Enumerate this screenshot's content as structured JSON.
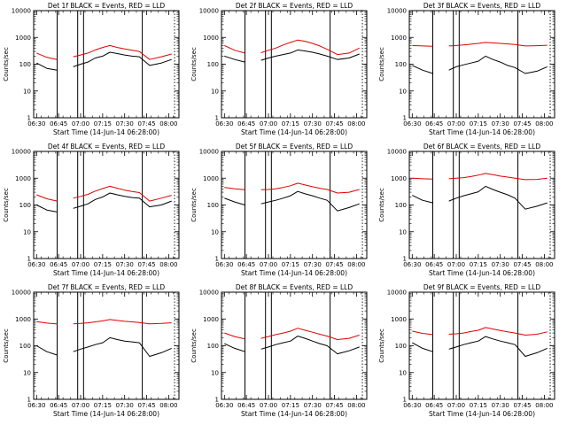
{
  "figure": {
    "xlabel": "Start Time (14-Jun-14 06:28:00)",
    "ylabel": "Counts/sec",
    "x_ticks": [
      "06:30",
      "06:45",
      "07:00",
      "07:15",
      "07:30",
      "07:45",
      "08:00"
    ],
    "y_ticks": [
      "1",
      "10",
      "100",
      "1000",
      "10000"
    ],
    "colors": {
      "events": "#000000",
      "lld": "#e00000",
      "axes": "#000000"
    }
  },
  "chart_data": [
    {
      "type": "line",
      "title": "Det 1f BLACK = Events, RED = LLD",
      "x_time_range": [
        "06:28",
        "08:07"
      ],
      "y_log": true,
      "ylim": [
        1,
        10000
      ],
      "markers": [
        "06:44",
        "06:58",
        "07:02",
        "07:42",
        "08:04"
      ],
      "x": [
        "06:30",
        "06:37",
        "06:44",
        "06:47",
        "06:55",
        "07:00",
        "07:05",
        "07:10",
        "07:15",
        "07:20",
        "07:25",
        "07:30",
        "07:35",
        "07:40",
        "07:47",
        "07:55",
        "08:02"
      ],
      "series": [
        {
          "name": "Events",
          "color": "#000000",
          "values": [
            110,
            70,
            60,
            null,
            80,
            100,
            120,
            170,
            200,
            280,
            250,
            220,
            200,
            190,
            90,
            110,
            150
          ]
        },
        {
          "name": "LLD",
          "color": "#e00000",
          "values": [
            260,
            180,
            150,
            null,
            190,
            220,
            260,
            340,
            420,
            500,
            420,
            370,
            330,
            300,
            150,
            190,
            240
          ]
        }
      ]
    },
    {
      "type": "line",
      "title": "Det 2f BLACK = Events, RED = LLD",
      "x_time_range": [
        "06:28",
        "08:07"
      ],
      "y_log": true,
      "ylim": [
        1,
        10000
      ],
      "markers": [
        "06:44",
        "06:58",
        "07:02",
        "07:42",
        "08:04"
      ],
      "x": [
        "06:30",
        "06:37",
        "06:44",
        "06:47",
        "06:55",
        "07:00",
        "07:05",
        "07:10",
        "07:15",
        "07:20",
        "07:25",
        "07:30",
        "07:35",
        "07:40",
        "07:47",
        "07:55",
        "08:02"
      ],
      "series": [
        {
          "name": "Events",
          "color": "#000000",
          "values": [
            200,
            150,
            120,
            null,
            140,
            170,
            200,
            230,
            260,
            340,
            310,
            280,
            240,
            200,
            150,
            170,
            240
          ]
        },
        {
          "name": "LLD",
          "color": "#e00000",
          "values": [
            500,
            330,
            260,
            null,
            270,
            330,
            400,
            520,
            650,
            800,
            720,
            600,
            480,
            360,
            230,
            260,
            400
          ]
        }
      ]
    },
    {
      "type": "line",
      "title": "Det 3f BLACK = Events, RED = LLD",
      "x_time_range": [
        "06:28",
        "08:07"
      ],
      "y_log": true,
      "ylim": [
        1,
        10000
      ],
      "markers": [
        "06:44",
        "06:58",
        "07:02",
        "07:42",
        "08:04"
      ],
      "x": [
        "06:30",
        "06:37",
        "06:44",
        "06:47",
        "06:55",
        "07:00",
        "07:05",
        "07:10",
        "07:15",
        "07:20",
        "07:25",
        "07:30",
        "07:35",
        "07:40",
        "07:47",
        "07:55",
        "08:02"
      ],
      "series": [
        {
          "name": "Events",
          "color": "#000000",
          "values": [
            90,
            60,
            45,
            null,
            60,
            80,
            95,
            110,
            130,
            200,
            150,
            120,
            90,
            75,
            45,
            55,
            80
          ]
        },
        {
          "name": "LLD",
          "color": "#e00000",
          "values": [
            500,
            480,
            470,
            null,
            480,
            500,
            520,
            560,
            600,
            650,
            620,
            600,
            570,
            540,
            480,
            490,
            510
          ]
        }
      ]
    },
    {
      "type": "line",
      "title": "Det 4f BLACK = Events, RED = LLD",
      "x_time_range": [
        "06:28",
        "08:07"
      ],
      "y_log": true,
      "ylim": [
        1,
        10000
      ],
      "markers": [
        "06:44",
        "06:58",
        "07:02",
        "07:42",
        "08:04"
      ],
      "x": [
        "06:30",
        "06:37",
        "06:44",
        "06:47",
        "06:55",
        "07:00",
        "07:05",
        "07:10",
        "07:15",
        "07:20",
        "07:25",
        "07:30",
        "07:35",
        "07:40",
        "07:47",
        "07:55",
        "08:02"
      ],
      "series": [
        {
          "name": "Events",
          "color": "#000000",
          "values": [
            100,
            65,
            55,
            null,
            75,
            90,
            110,
            160,
            200,
            280,
            240,
            210,
            190,
            180,
            85,
            100,
            140
          ]
        },
        {
          "name": "LLD",
          "color": "#e00000",
          "values": [
            240,
            170,
            140,
            null,
            180,
            210,
            250,
            330,
            410,
            500,
            420,
            360,
            320,
            290,
            140,
            180,
            230
          ]
        }
      ]
    },
    {
      "type": "line",
      "title": "Det 5f BLACK = Events, RED = LLD",
      "x_time_range": [
        "06:28",
        "08:07"
      ],
      "y_log": true,
      "ylim": [
        1,
        10000
      ],
      "markers": [
        "06:44",
        "06:58",
        "07:02",
        "07:42",
        "08:04"
      ],
      "x": [
        "06:30",
        "06:37",
        "06:44",
        "06:47",
        "06:55",
        "07:00",
        "07:05",
        "07:10",
        "07:15",
        "07:20",
        "07:25",
        "07:30",
        "07:35",
        "07:40",
        "07:47",
        "07:55",
        "08:02"
      ],
      "series": [
        {
          "name": "Events",
          "color": "#000000",
          "values": [
            180,
            130,
            100,
            null,
            110,
            130,
            150,
            180,
            220,
            320,
            260,
            220,
            180,
            150,
            60,
            80,
            110
          ]
        },
        {
          "name": "LLD",
          "color": "#e00000",
          "values": [
            450,
            400,
            370,
            null,
            370,
            380,
            400,
            450,
            520,
            650,
            560,
            480,
            420,
            380,
            280,
            300,
            380
          ]
        }
      ]
    },
    {
      "type": "line",
      "title": "Det 6f BLACK = Events, RED = LLD",
      "x_time_range": [
        "06:28",
        "08:07"
      ],
      "y_log": true,
      "ylim": [
        1,
        10000
      ],
      "markers": [
        "06:44",
        "06:58",
        "07:02",
        "07:42",
        "08:04"
      ],
      "x": [
        "06:30",
        "06:37",
        "06:44",
        "06:47",
        "06:55",
        "07:00",
        "07:05",
        "07:10",
        "07:15",
        "07:20",
        "07:25",
        "07:30",
        "07:35",
        "07:40",
        "07:47",
        "07:55",
        "08:02"
      ],
      "series": [
        {
          "name": "Events",
          "color": "#000000",
          "values": [
            230,
            150,
            120,
            null,
            140,
            180,
            220,
            260,
            310,
            500,
            380,
            300,
            240,
            180,
            70,
            90,
            120
          ]
        },
        {
          "name": "LLD",
          "color": "#e00000",
          "values": [
            1000,
            950,
            920,
            null,
            950,
            1000,
            1050,
            1150,
            1300,
            1500,
            1350,
            1200,
            1100,
            1000,
            880,
            900,
            1000
          ]
        }
      ]
    },
    {
      "type": "line",
      "title": "Det 7f BLACK = Events, RED = LLD",
      "x_time_range": [
        "06:28",
        "08:07"
      ],
      "y_log": true,
      "ylim": [
        1,
        10000
      ],
      "markers": [
        "06:44",
        "06:58",
        "07:02",
        "07:42",
        "08:04"
      ],
      "x": [
        "06:30",
        "06:37",
        "06:44",
        "06:47",
        "06:55",
        "07:00",
        "07:05",
        "07:10",
        "07:15",
        "07:20",
        "07:25",
        "07:30",
        "07:35",
        "07:40",
        "07:47",
        "07:55",
        "08:02"
      ],
      "series": [
        {
          "name": "Events",
          "color": "#000000",
          "values": [
            100,
            60,
            45,
            null,
            60,
            75,
            90,
            110,
            130,
            200,
            170,
            150,
            140,
            130,
            40,
            55,
            80
          ]
        },
        {
          "name": "LLD",
          "color": "#e00000",
          "values": [
            800,
            700,
            650,
            null,
            660,
            680,
            720,
            780,
            850,
            950,
            880,
            820,
            780,
            740,
            660,
            680,
            720
          ]
        }
      ]
    },
    {
      "type": "line",
      "title": "Det 8f BLACK = Events, RED = LLD",
      "x_time_range": [
        "06:28",
        "08:07"
      ],
      "y_log": true,
      "ylim": [
        1,
        10000
      ],
      "markers": [
        "06:44",
        "06:58",
        "07:02",
        "07:42",
        "08:04"
      ],
      "x": [
        "06:30",
        "06:37",
        "06:44",
        "06:47",
        "06:55",
        "07:00",
        "07:05",
        "07:10",
        "07:15",
        "07:20",
        "07:25",
        "07:30",
        "07:35",
        "07:40",
        "07:47",
        "07:55",
        "08:02"
      ],
      "series": [
        {
          "name": "Events",
          "color": "#000000",
          "values": [
            120,
            80,
            60,
            null,
            75,
            90,
            110,
            130,
            150,
            230,
            190,
            150,
            120,
            100,
            50,
            65,
            90
          ]
        },
        {
          "name": "LLD",
          "color": "#e00000",
          "values": [
            300,
            220,
            180,
            null,
            190,
            220,
            260,
            300,
            350,
            450,
            380,
            320,
            270,
            230,
            170,
            190,
            250
          ]
        }
      ]
    },
    {
      "type": "line",
      "title": "Det 9f BLACK = Events, RED = LLD",
      "x_time_range": [
        "06:28",
        "08:07"
      ],
      "y_log": true,
      "ylim": [
        1,
        10000
      ],
      "markers": [
        "06:44",
        "06:58",
        "07:02",
        "07:42",
        "08:04"
      ],
      "x": [
        "06:30",
        "06:37",
        "06:44",
        "06:47",
        "06:55",
        "07:00",
        "07:05",
        "07:10",
        "07:15",
        "07:20",
        "07:25",
        "07:30",
        "07:35",
        "07:40",
        "07:47",
        "07:55",
        "08:02"
      ],
      "series": [
        {
          "name": "Events",
          "color": "#000000",
          "values": [
            130,
            80,
            60,
            null,
            75,
            90,
            110,
            130,
            150,
            220,
            180,
            150,
            130,
            110,
            40,
            55,
            80
          ]
        },
        {
          "name": "LLD",
          "color": "#e00000",
          "values": [
            350,
            290,
            260,
            null,
            270,
            280,
            300,
            340,
            380,
            480,
            420,
            370,
            330,
            300,
            250,
            270,
            330
          ]
        }
      ]
    }
  ]
}
